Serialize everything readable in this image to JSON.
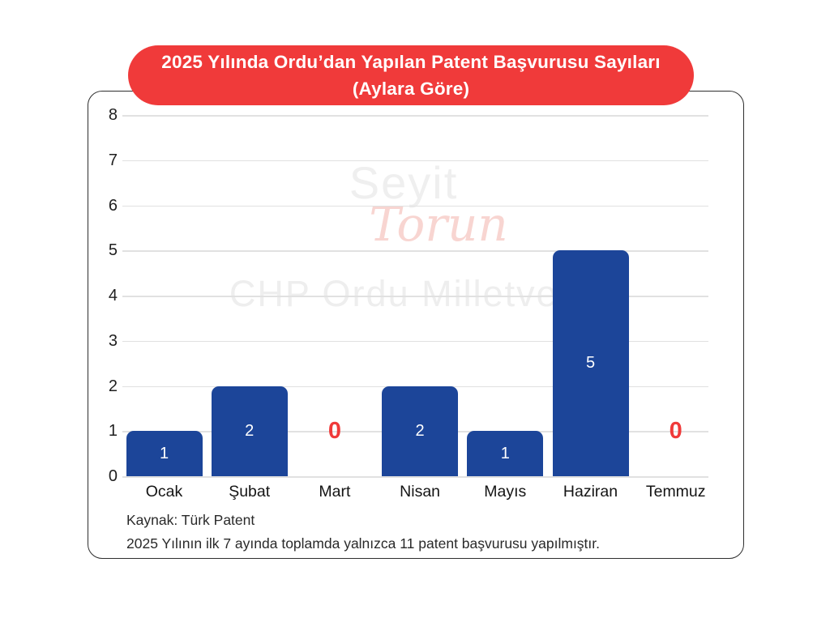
{
  "header": {
    "line1": "2025 Yılında Ordu’dan Yapılan Patent Başvurusu Sayıları",
    "line2": "(Aylara Göre)"
  },
  "watermark": {
    "line1": "Seyit",
    "line2": "Torun",
    "line3": "CHP Ordu Milletvekili"
  },
  "chart_data": {
    "type": "bar",
    "title": "2025 Yılında Ordu’dan Yapılan Patent Başvurusu Sayıları (Aylara Göre)",
    "categories": [
      "Ocak",
      "Şubat",
      "Mart",
      "Nisan",
      "Mayıs",
      "Haziran",
      "Temmuz"
    ],
    "values": [
      1,
      2,
      0,
      2,
      1,
      5,
      0
    ],
    "xlabel": "",
    "ylabel": "",
    "ylim": [
      0,
      8
    ],
    "yticks": [
      0,
      1,
      2,
      3,
      4,
      5,
      6,
      7,
      8
    ],
    "grid": true,
    "legend": "none",
    "bar_labels_inside": true,
    "zero_shown_as_red_text": true
  },
  "footer": {
    "source": "Kaynak: Türk Patent",
    "note": "2025 Yılının ilk 7 ayında toplamda yalnızca 11 patent başvurusu yapılmıştır."
  },
  "colors": {
    "red": "#f03a3a",
    "bar_blue": "#1c4599",
    "gridline": "#e1e1e1",
    "watermark_gray": "#eeeeee",
    "watermark_pink": "#f8d5d1"
  }
}
